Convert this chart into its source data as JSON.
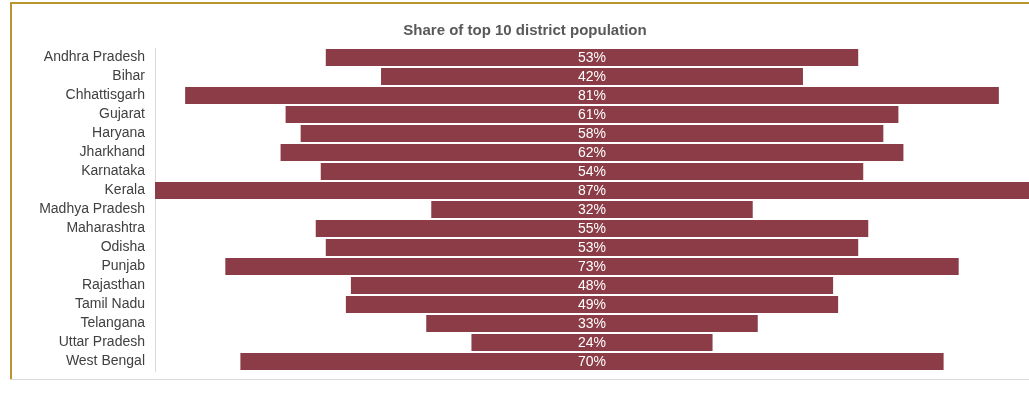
{
  "chart_data": {
    "type": "other",
    "title": "Share of top 10 district population",
    "categories": [
      "Andhra Pradesh",
      "Bihar",
      "Chhattisgarh",
      "Gujarat",
      "Haryana",
      "Jharkhand",
      "Karnataka",
      "Kerala",
      "Madhya Pradesh",
      "Maharashtra",
      "Odisha",
      "Punjab",
      "Rajasthan",
      "Tamil Nadu",
      "Telangana",
      "Uttar Pradesh",
      "West Bengal"
    ],
    "values": [
      53,
      42,
      81,
      61,
      58,
      62,
      54,
      87,
      32,
      55,
      53,
      73,
      48,
      49,
      33,
      24,
      70
    ],
    "value_labels": [
      "53%",
      "42%",
      "81%",
      "61%",
      "58%",
      "62%",
      "54%",
      "87%",
      "32%",
      "55%",
      "53%",
      "73%",
      "48%",
      "49%",
      "33%",
      "24%",
      "70%"
    ],
    "color": "#8b3c46"
  }
}
